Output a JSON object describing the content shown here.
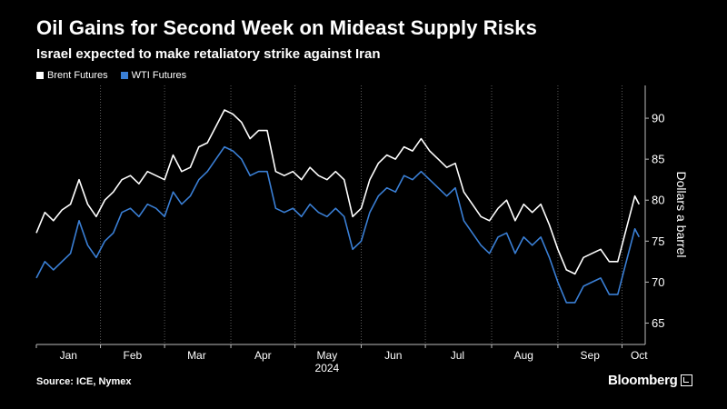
{
  "header": {
    "title": "Oil Gains for Second Week on Mideast Supply Risks",
    "subtitle": "Israel expected to make retaliatory strike against Iran"
  },
  "footer": {
    "source": "Source: ICE, Nymex",
    "brand": "Bloomberg"
  },
  "colors": {
    "background": "#000000",
    "brent": "#ffffff",
    "wti": "#3a7fd5",
    "grid": "#5a5a5a"
  },
  "chart_data": {
    "type": "line",
    "title": "Oil Gains for Second Week on Mideast Supply Risks",
    "subtitle": "Israel expected to make retaliatory strike against Iran",
    "xlabel": "2024",
    "ylabel": "Dollars a barrel",
    "ylim": [
      62.5,
      94
    ],
    "yticks": [
      65,
      70,
      75,
      80,
      85,
      90
    ],
    "x_domain_days": [
      0,
      284
    ],
    "x_ticks": [
      {
        "label": "Jan",
        "day": 15
      },
      {
        "label": "Feb",
        "day": 45
      },
      {
        "label": "Mar",
        "day": 75
      },
      {
        "label": "Apr",
        "day": 106
      },
      {
        "label": "May",
        "day": 136
      },
      {
        "label": "Jun",
        "day": 167
      },
      {
        "label": "Jul",
        "day": 197
      },
      {
        "label": "Aug",
        "day": 228
      },
      {
        "label": "Sep",
        "day": 259
      },
      {
        "label": "Oct",
        "day": 282
      }
    ],
    "year_label": "2024",
    "legend_position": "top-left",
    "grid": "vertical-dotted",
    "series": [
      {
        "name": "Brent Futures",
        "x": [
          0,
          4,
          8,
          12,
          16,
          20,
          24,
          28,
          32,
          36,
          40,
          44,
          48,
          52,
          56,
          60,
          64,
          68,
          72,
          76,
          80,
          84,
          88,
          92,
          96,
          100,
          104,
          108,
          112,
          116,
          120,
          124,
          128,
          132,
          136,
          140,
          144,
          148,
          152,
          156,
          160,
          164,
          168,
          172,
          176,
          180,
          184,
          188,
          192,
          196,
          200,
          204,
          208,
          212,
          216,
          220,
          224,
          228,
          232,
          236,
          240,
          244,
          248,
          252,
          256,
          260,
          264,
          268,
          272,
          276,
          280,
          282
        ],
        "values": [
          76.0,
          78.5,
          77.5,
          78.8,
          79.5,
          82.5,
          79.5,
          78.0,
          80.0,
          81.0,
          82.5,
          83.0,
          82.0,
          83.5,
          83.0,
          82.5,
          85.5,
          83.5,
          84.0,
          86.5,
          87.0,
          89.0,
          91.0,
          90.5,
          89.5,
          87.5,
          88.5,
          88.5,
          83.5,
          83.0,
          83.5,
          82.5,
          84.0,
          83.0,
          82.5,
          83.5,
          82.5,
          78.0,
          79.0,
          82.5,
          84.5,
          85.5,
          85.0,
          86.5,
          86.0,
          87.5,
          86.0,
          85.0,
          84.0,
          84.5,
          81.0,
          79.5,
          78.0,
          77.5,
          79.0,
          80.0,
          77.5,
          79.5,
          78.5,
          79.5,
          77.0,
          74.0,
          71.5,
          71.0,
          73.0,
          73.5,
          74.0,
          72.5,
          72.5,
          76.5,
          80.5,
          79.5
        ]
      },
      {
        "name": "WTI Futures",
        "x": [
          0,
          4,
          8,
          12,
          16,
          20,
          24,
          28,
          32,
          36,
          40,
          44,
          48,
          52,
          56,
          60,
          64,
          68,
          72,
          76,
          80,
          84,
          88,
          92,
          96,
          100,
          104,
          108,
          112,
          116,
          120,
          124,
          128,
          132,
          136,
          140,
          144,
          148,
          152,
          156,
          160,
          164,
          168,
          172,
          176,
          180,
          184,
          188,
          192,
          196,
          200,
          204,
          208,
          212,
          216,
          220,
          224,
          228,
          232,
          236,
          240,
          244,
          248,
          252,
          256,
          260,
          264,
          268,
          272,
          276,
          280,
          282
        ],
        "values": [
          70.5,
          72.5,
          71.5,
          72.5,
          73.5,
          77.5,
          74.5,
          73.0,
          75.0,
          76.0,
          78.5,
          79.0,
          78.0,
          79.5,
          79.0,
          78.0,
          81.0,
          79.5,
          80.5,
          82.5,
          83.5,
          85.0,
          86.5,
          86.0,
          85.0,
          83.0,
          83.5,
          83.5,
          79.0,
          78.5,
          79.0,
          78.0,
          79.5,
          78.5,
          78.0,
          79.0,
          78.0,
          74.0,
          75.0,
          78.5,
          80.5,
          81.5,
          81.0,
          83.0,
          82.5,
          83.5,
          82.5,
          81.5,
          80.5,
          81.5,
          77.5,
          76.0,
          74.5,
          73.5,
          75.5,
          76.0,
          73.5,
          75.5,
          74.5,
          75.5,
          73.0,
          70.0,
          67.5,
          67.5,
          69.5,
          70.0,
          70.5,
          68.5,
          68.5,
          72.5,
          76.5,
          75.5
        ]
      }
    ]
  }
}
